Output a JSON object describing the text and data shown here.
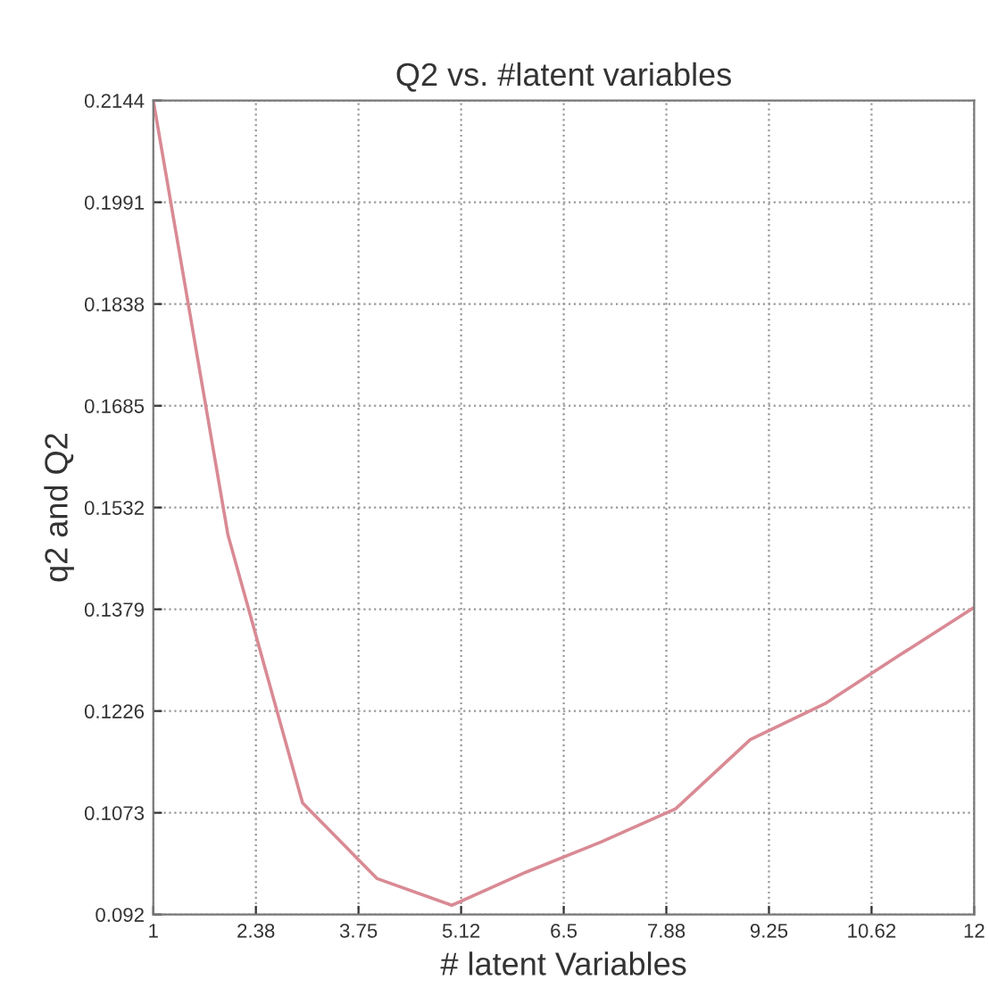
{
  "chart_data": {
    "type": "line",
    "title": "Q2 vs. #latent variables",
    "xlabel": "# latent Variables",
    "ylabel": "q2 and Q2",
    "x": [
      1,
      2,
      3,
      4,
      5,
      6,
      7,
      8,
      9,
      10,
      11,
      12
    ],
    "series": [
      {
        "color": "#d98a94",
        "values": [
          0.2144,
          0.1491,
          0.1088,
          0.0974,
          0.0934,
          0.0984,
          0.1029,
          0.1079,
          0.1183,
          0.1237,
          0.131,
          0.1382
        ]
      }
    ],
    "xlim": [
      1,
      12
    ],
    "xticks": [
      1,
      {
        "value": 2.375,
        "label": "2.38"
      },
      3.75,
      {
        "value": 5.125,
        "label": "5.12"
      },
      6.5,
      {
        "value": 7.875,
        "label": "7.88"
      },
      9.25,
      {
        "value": 10.625,
        "label": "10.62"
      },
      12
    ],
    "ylim": [
      0.092,
      0.2144
    ],
    "yticks": [
      0.092,
      0.1073,
      0.1226,
      0.1379,
      0.1532,
      0.1685,
      0.1838,
      0.1991,
      0.2144
    ],
    "grid": true,
    "line_style": "solid",
    "marker": "none"
  }
}
